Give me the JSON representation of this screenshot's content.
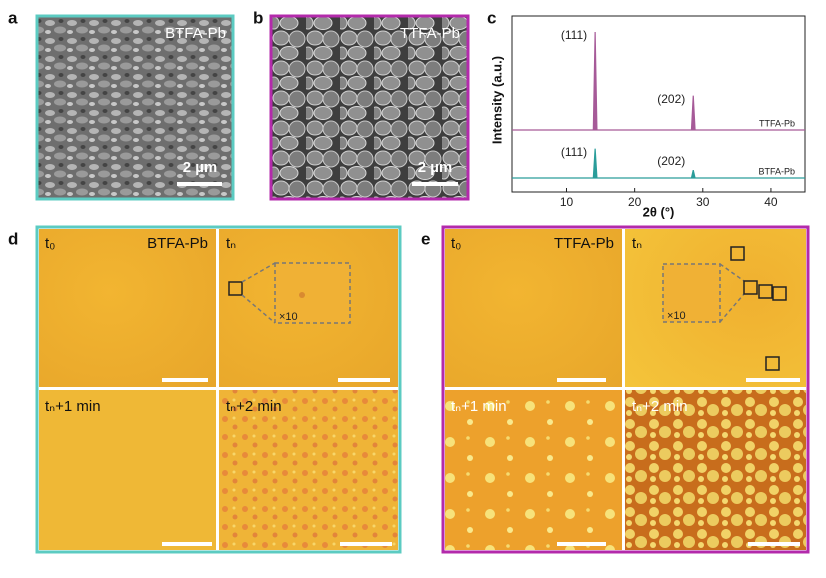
{
  "panels": {
    "a": {
      "label": "a",
      "caption": "BTFA-Pb",
      "scale_bar": "2 µm"
    },
    "b": {
      "label": "b",
      "caption": "TTFA-Pb",
      "scale_bar": "2 µm"
    },
    "c": {
      "label": "c",
      "type": "line",
      "x_label": "2θ (°)",
      "y_label": "Intensity (a.u.)",
      "xlim": [
        2,
        45
      ],
      "xticks": [
        10,
        20,
        30,
        40
      ],
      "series": [
        {
          "name": "TTFA-Pb",
          "color": "#a65a98",
          "peaks": [
            {
              "x": 14.2,
              "intensity": 100,
              "label": "(111)"
            },
            {
              "x": 28.6,
              "intensity": 35,
              "label": "(202)"
            }
          ]
        },
        {
          "name": "BTFA-Pb",
          "color": "#2a9d9a",
          "peaks": [
            {
              "x": 14.2,
              "intensity": 30,
              "label": "(111)"
            },
            {
              "x": 28.6,
              "intensity": 8,
              "label": "(202)"
            }
          ]
        }
      ]
    },
    "d": {
      "label": "d",
      "caption": "BTFA-Pb",
      "zoom": "×10",
      "quadrants": [
        "t₀",
        "tₙ",
        "tₙ+1 min",
        "tₙ+2 min"
      ]
    },
    "e": {
      "label": "e",
      "caption": "TTFA-Pb",
      "zoom": "×10",
      "quadrants": [
        "t₀",
        "tₙ",
        "tₙ+1 min",
        "tₙ+2 min"
      ]
    }
  }
}
